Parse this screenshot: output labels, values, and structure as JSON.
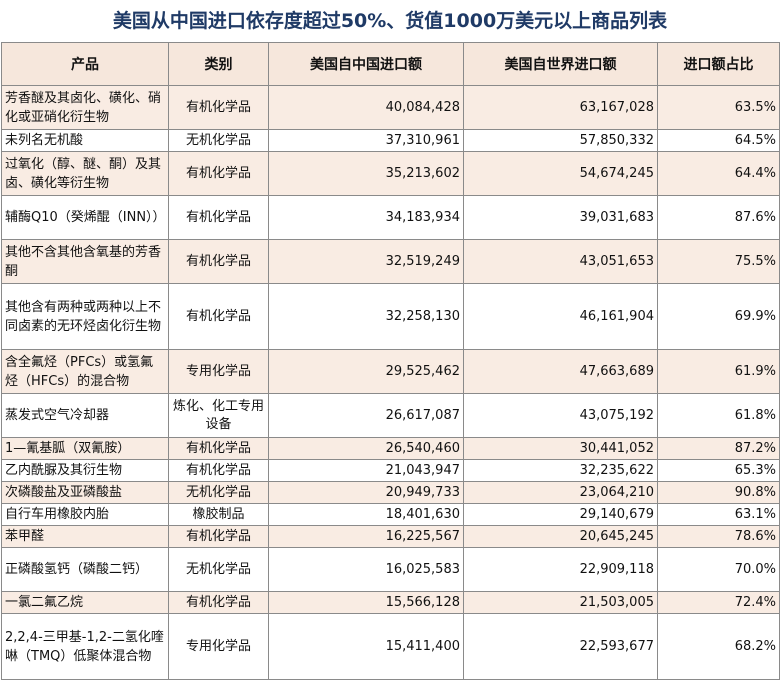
{
  "title": "美国从中国进口依存度超过50%、货值1000万美元以上商品列表",
  "headers": [
    "产品",
    "类别",
    "美国自中国进口额",
    "美国自世界进口额",
    "进口额占比"
  ],
  "rows": [
    {
      "product": "芳香醚及其卤化、磺化、硝化或亚硝化衍生物",
      "category": "有机化学品",
      "china": "40,084,428",
      "world": "63,167,028",
      "share": "63.5%"
    },
    {
      "product": "未列名无机酸",
      "category": "无机化学品",
      "china": "37,310,961",
      "world": "57,850,332",
      "share": "64.5%"
    },
    {
      "product": "过氧化（醇、醚、酮）及其卤、磺化等衍生物",
      "category": "有机化学品",
      "china": "35,213,602",
      "world": "54,674,245",
      "share": "64.4%"
    },
    {
      "product": "辅酶Q10（癸烯醌（INN））",
      "category": "有机化学品",
      "china": "34,183,934",
      "world": "39,031,683",
      "share": "87.6%"
    },
    {
      "product": "其他不含其他含氧基的芳香酮",
      "category": "有机化学品",
      "china": "32,519,249",
      "world": "43,051,653",
      "share": "75.5%"
    },
    {
      "product": "其他含有两种或两种以上不同卤素的无环烃卤化衍生物",
      "category": "有机化学品",
      "china": "32,258,130",
      "world": "46,161,904",
      "share": "69.9%"
    },
    {
      "product": "含全氟烃（PFCs）或氢氟烃（HFCs）的混合物",
      "category": "专用化学品",
      "china": "29,525,462",
      "world": "47,663,689",
      "share": "61.9%"
    },
    {
      "product": "蒸发式空气冷却器",
      "category": "炼化、化工专用设备",
      "china": "26,617,087",
      "world": "43,075,192",
      "share": "61.8%"
    },
    {
      "product": "1—氰基胍（双氰胺）",
      "category": "有机化学品",
      "china": "26,540,460",
      "world": "30,441,052",
      "share": "87.2%"
    },
    {
      "product": "乙内酰脲及其衍生物",
      "category": "有机化学品",
      "china": "21,043,947",
      "world": "32,235,622",
      "share": "65.3%"
    },
    {
      "product": "次磷酸盐及亚磷酸盐",
      "category": "无机化学品",
      "china": "20,949,733",
      "world": "23,064,210",
      "share": "90.8%"
    },
    {
      "product": "自行车用橡胶内胎",
      "category": "橡胶制品",
      "china": "18,401,630",
      "world": "29,140,679",
      "share": "63.1%"
    },
    {
      "product": "苯甲醛",
      "category": "有机化学品",
      "china": "16,225,567",
      "world": "20,645,245",
      "share": "78.6%"
    },
    {
      "product": "正磷酸氢钙（磷酸二钙）",
      "category": "无机化学品",
      "china": "16,025,583",
      "world": "22,909,118",
      "share": "70.0%"
    },
    {
      "product": "一氯二氟乙烷",
      "category": "有机化学品",
      "china": "15,566,128",
      "world": "21,503,005",
      "share": "72.4%"
    },
    {
      "product": "2,2,4-三甲基-1,2-二氢化喹啉（TMQ）低聚体混合物",
      "category": "专用化学品",
      "china": "15,411,400",
      "world": "22,593,677",
      "share": "68.2%"
    }
  ]
}
